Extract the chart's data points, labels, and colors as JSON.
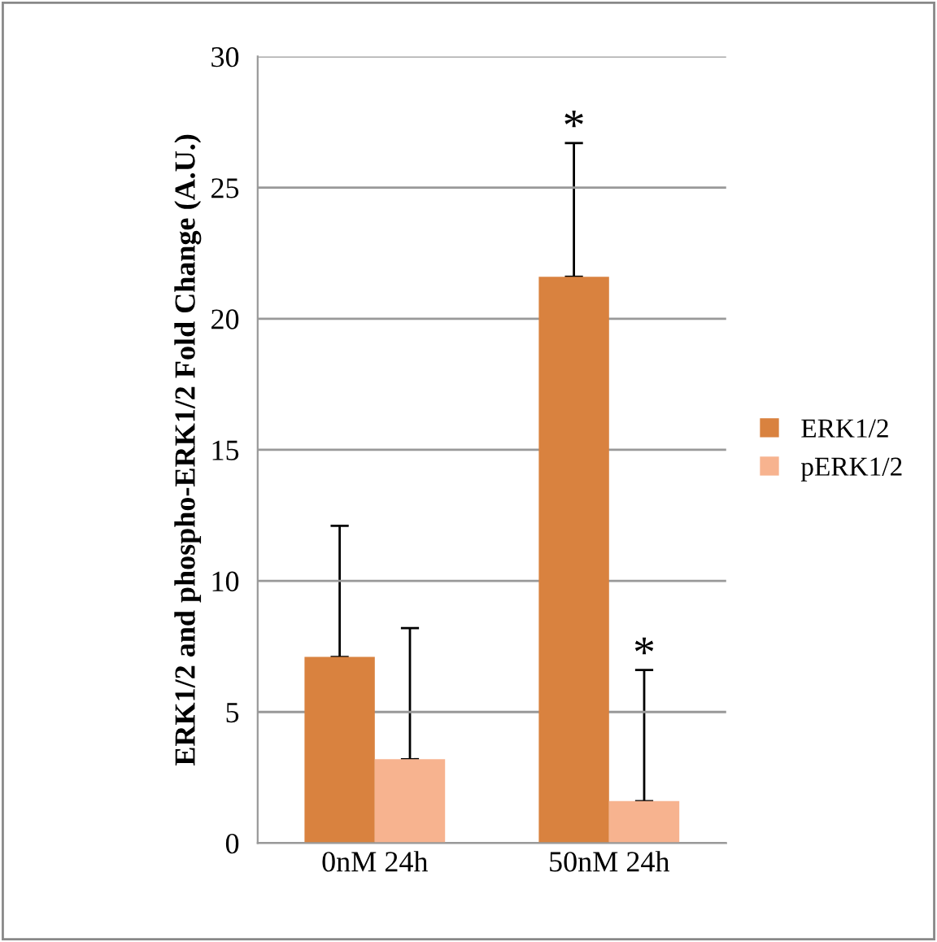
{
  "chart_data": {
    "type": "bar",
    "ylabel": "ERK1/2 and phospho-ERK1/2 Fold Change (A.U.)",
    "categories": [
      "0nM 24h",
      "50nM 24h"
    ],
    "series": [
      {
        "name": "ERK1/2",
        "color": "#d9823f",
        "values": [
          7.1,
          21.6
        ],
        "errors": [
          [
            7.1,
            12.1
          ],
          [
            21.6,
            26.7
          ]
        ]
      },
      {
        "name": "pERK1/2",
        "color": "#f7b38f",
        "values": [
          3.2,
          1.6
        ],
        "errors": [
          [
            3.2,
            8.2
          ],
          [
            1.6,
            6.6
          ]
        ]
      }
    ],
    "ylim": [
      0,
      30
    ],
    "yticks": [
      0,
      5,
      10,
      15,
      20,
      25,
      30
    ],
    "grid": "y",
    "legend": "right",
    "annotations": [
      "*",
      "*"
    ]
  }
}
